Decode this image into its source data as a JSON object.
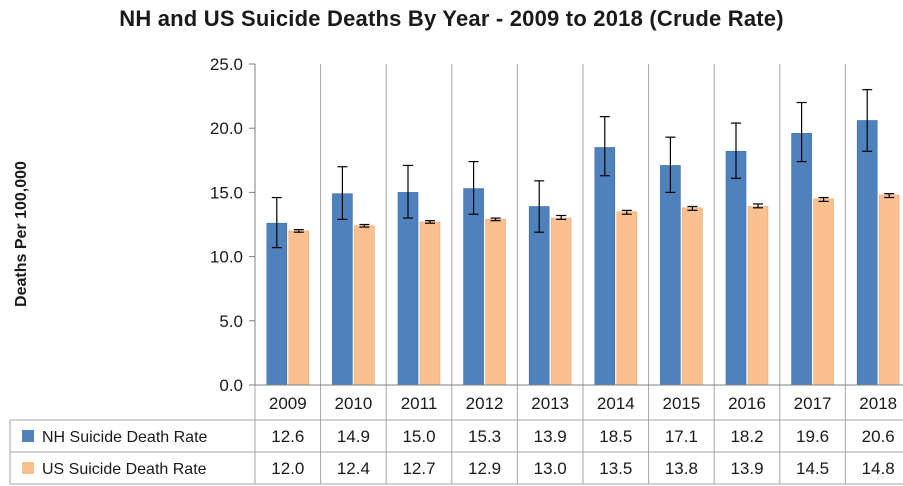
{
  "chart_data": {
    "type": "bar",
    "title": "NH  and US Suicide Deaths By Year - 2009 to 2018 (Crude Rate)",
    "ylabel": "Deaths Per 100,000",
    "xlabel": "",
    "ylim": [
      0,
      25
    ],
    "yticks": [
      "0.0",
      "5.0",
      "10.0",
      "15.0",
      "20.0",
      "25.0"
    ],
    "grid": "vertical-category-lines",
    "legend_placement": "data-table-left",
    "categories": [
      "2009",
      "2010",
      "2011",
      "2012",
      "2013",
      "2014",
      "2015",
      "2016",
      "2017",
      "2018"
    ],
    "series": [
      {
        "name": "NH Suicide Death Rate",
        "color": "#4F81BD",
        "values": [
          12.6,
          14.9,
          15.0,
          15.3,
          13.9,
          18.5,
          17.1,
          18.2,
          19.6,
          20.6
        ],
        "labels": [
          "12.6",
          "14.9",
          "15.0",
          "15.3",
          "13.9",
          "18.5",
          "17.1",
          "18.2",
          "19.6",
          "20.6"
        ],
        "error_low": [
          10.7,
          12.9,
          13.0,
          13.3,
          11.9,
          16.3,
          15.0,
          16.1,
          17.4,
          18.2
        ],
        "error_high": [
          14.6,
          17.0,
          17.1,
          17.4,
          15.9,
          20.9,
          19.3,
          20.4,
          22.0,
          23.0
        ]
      },
      {
        "name": "US Suicide Death Rate",
        "color": "#FAC090",
        "values": [
          12.0,
          12.4,
          12.7,
          12.9,
          13.0,
          13.5,
          13.8,
          13.9,
          14.5,
          14.8
        ],
        "labels": [
          "12.0",
          "12.4",
          "12.7",
          "12.9",
          "13.0",
          "13.5",
          "13.8",
          "13.9",
          "14.5",
          "14.8"
        ],
        "error_low": [
          11.9,
          12.3,
          12.6,
          12.8,
          12.9,
          13.3,
          13.6,
          13.8,
          14.3,
          14.6
        ],
        "error_high": [
          12.1,
          12.5,
          12.8,
          13.0,
          13.2,
          13.6,
          13.9,
          14.1,
          14.6,
          14.9
        ]
      }
    ]
  }
}
